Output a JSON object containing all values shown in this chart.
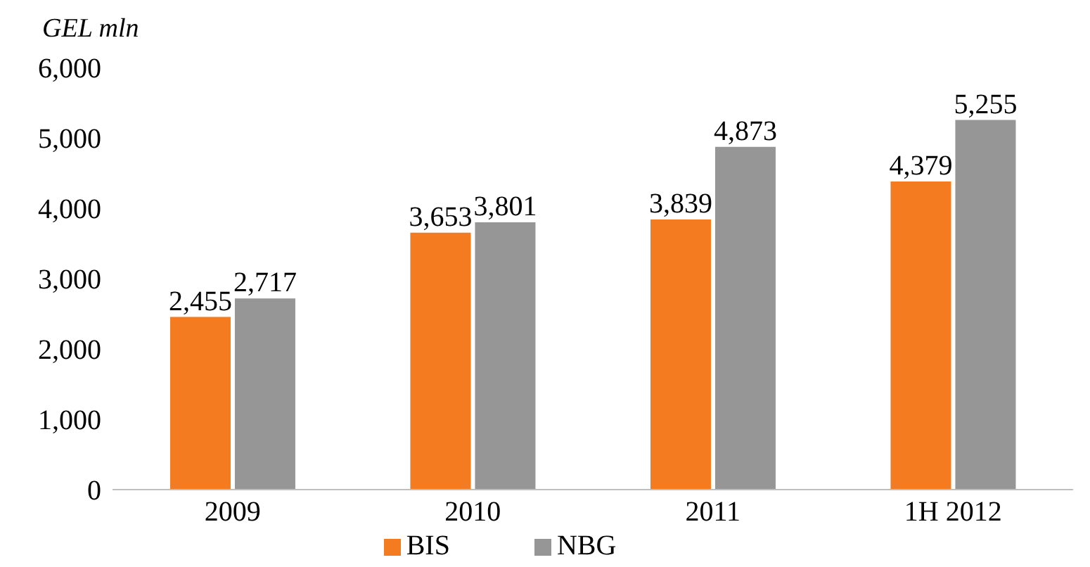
{
  "chart_data": {
    "type": "bar",
    "ylabel": "GEL mln",
    "categories": [
      "2009",
      "2010",
      "2011",
      "1H 2012"
    ],
    "series": [
      {
        "name": "BIS",
        "color": "#f47b20",
        "values": [
          2455,
          3653,
          3839,
          4379
        ],
        "value_labels": [
          "2,455",
          "3,653",
          "3,839",
          "4,379"
        ]
      },
      {
        "name": "NBG",
        "color": "#969696",
        "values": [
          2717,
          3801,
          4873,
          5255
        ],
        "value_labels": [
          "2,717",
          "3,801",
          "4,873",
          "5,255"
        ]
      }
    ],
    "ylim": [
      0,
      6000
    ],
    "yticks": [
      {
        "value": 0,
        "label": "0"
      },
      {
        "value": 1000,
        "label": "1,000"
      },
      {
        "value": 2000,
        "label": "2,000"
      },
      {
        "value": 3000,
        "label": "3,000"
      },
      {
        "value": 4000,
        "label": "4,000"
      },
      {
        "value": 5000,
        "label": "5,000"
      },
      {
        "value": 6000,
        "label": "6,000"
      }
    ],
    "legend": "bottom"
  }
}
